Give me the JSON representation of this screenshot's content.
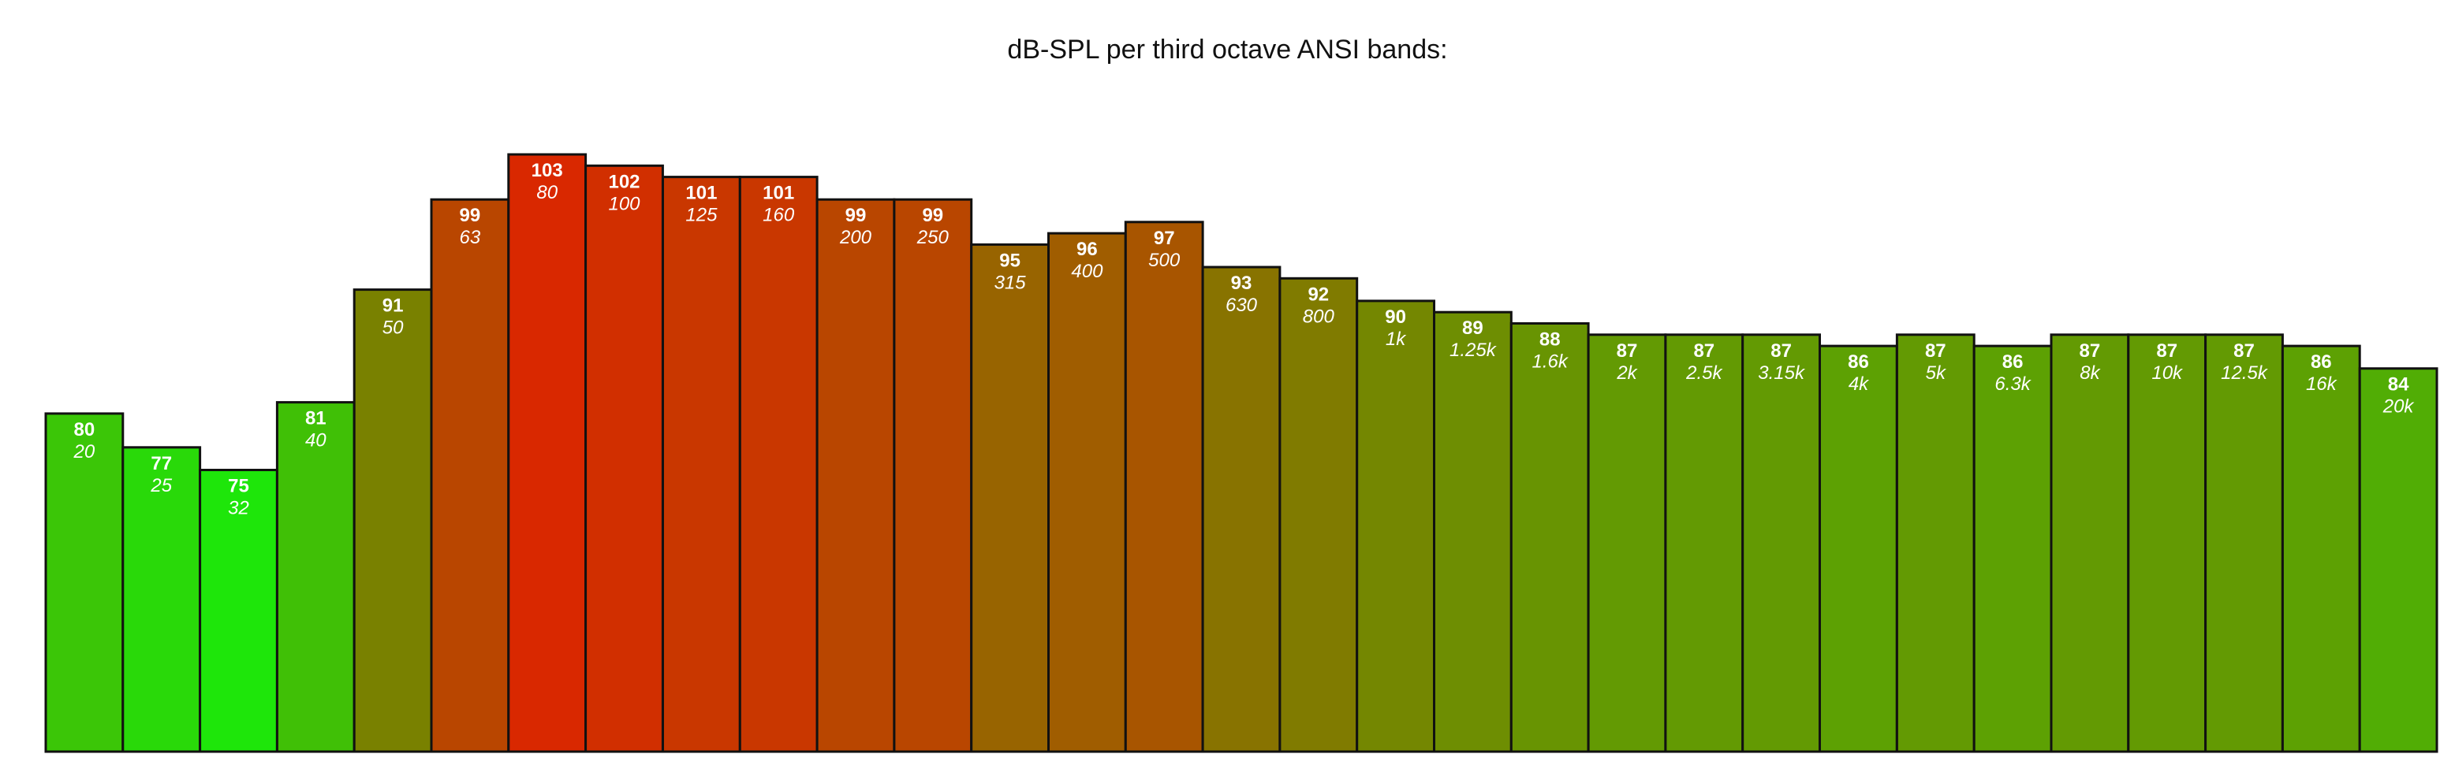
{
  "chart_data": {
    "type": "bar",
    "title": "dB-SPL per third octave ANSI bands:",
    "xlabel": "",
    "ylabel": "",
    "ylim": [
      50,
      103
    ],
    "grid": false,
    "legend": "none",
    "categories": [
      "20",
      "25",
      "32",
      "40",
      "50",
      "63",
      "80",
      "100",
      "125",
      "160",
      "200",
      "250",
      "315",
      "400",
      "500",
      "630",
      "800",
      "1k",
      "1.25k",
      "1.6k",
      "2k",
      "2.5k",
      "3.15k",
      "4k",
      "5k",
      "6.3k",
      "8k",
      "10k",
      "12.5k",
      "16k",
      "20k"
    ],
    "values": [
      80,
      77,
      75,
      81,
      91,
      99,
      103,
      102,
      101,
      101,
      99,
      99,
      95,
      96,
      97,
      93,
      92,
      90,
      89,
      88,
      87,
      87,
      87,
      86,
      87,
      86,
      87,
      87,
      87,
      86,
      84
    ],
    "colors": {
      "low": "#1ee60a",
      "mid": "#7e7c00",
      "high": "#d92800",
      "border": "#111111"
    }
  }
}
